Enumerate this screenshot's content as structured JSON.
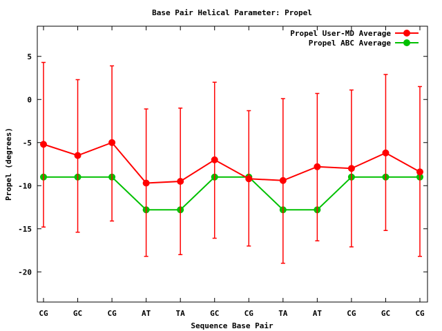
{
  "chart_data": {
    "type": "line",
    "title": "Base Pair Helical Parameter: Propel",
    "xlabel": "Sequence Base Pair",
    "ylabel": "Propel (degrees)",
    "categories": [
      "CG",
      "GC",
      "CG",
      "AT",
      "TA",
      "GC",
      "CG",
      "TA",
      "AT",
      "CG",
      "GC",
      "CG"
    ],
    "ylim": [
      -23.5,
      8.5
    ],
    "yticks": [
      5,
      0,
      -5,
      -10,
      -15,
      -20
    ],
    "legend_position": "top-right",
    "grid": false,
    "series": [
      {
        "name": "Propel User-MD Average",
        "color": "#ff0000",
        "values": [
          -5.2,
          -6.5,
          -5.0,
          -9.7,
          -9.5,
          -7.0,
          -9.2,
          -9.4,
          -7.8,
          -8.0,
          -6.2,
          -8.4
        ],
        "error_low": [
          -14.8,
          -15.4,
          -14.1,
          -18.2,
          -18.0,
          -16.1,
          -17.0,
          -19.0,
          -16.4,
          -17.1,
          -15.2,
          -18.2
        ],
        "error_high": [
          4.3,
          2.3,
          3.9,
          -1.1,
          -1.0,
          2.0,
          -1.3,
          0.1,
          0.7,
          1.1,
          2.9,
          1.5
        ]
      },
      {
        "name": "Propel ABC Average",
        "color": "#00c000",
        "values": [
          -9.0,
          -9.0,
          -9.0,
          -12.8,
          -12.8,
          -9.0,
          -9.0,
          -12.8,
          -12.8,
          -9.0,
          -9.0,
          -9.0
        ]
      }
    ]
  }
}
